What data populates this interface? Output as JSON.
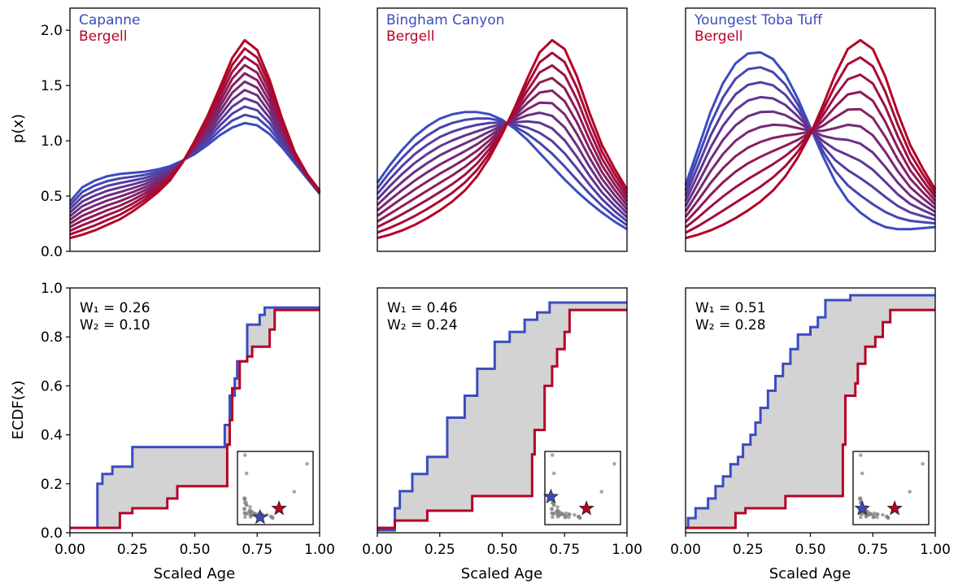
{
  "figure": {
    "colors": {
      "start": "#3b4cc0",
      "end": "#b40426",
      "fill": "#d3d3d3",
      "scatter": "#808080"
    },
    "labels": {
      "top_ylabel": "p(x)",
      "bottom_ylabel": "ECDF(x)",
      "xlabel": "Scaled Age"
    }
  },
  "chart_data": [
    {
      "type": "line",
      "row": "top",
      "col": 0,
      "legend": [
        "Capanne",
        "Bergell"
      ],
      "ylim": [
        0,
        2.2
      ],
      "xlim": [
        0,
        1
      ],
      "yticks": [
        "0.0",
        "0.5",
        "1.0",
        "1.5",
        "2.0"
      ],
      "x": [
        0,
        0.05,
        0.1,
        0.15,
        0.2,
        0.25,
        0.3,
        0.35,
        0.4,
        0.45,
        0.5,
        0.55,
        0.6,
        0.65,
        0.7,
        0.75,
        0.8,
        0.85,
        0.9,
        0.95,
        1.0
      ],
      "start_curve": [
        0.45,
        0.58,
        0.64,
        0.68,
        0.7,
        0.71,
        0.72,
        0.74,
        0.77,
        0.82,
        0.88,
        0.96,
        1.05,
        1.12,
        1.16,
        1.14,
        1.06,
        0.94,
        0.8,
        0.66,
        0.52
      ],
      "end_curve": [
        0.12,
        0.15,
        0.19,
        0.24,
        0.29,
        0.36,
        0.44,
        0.53,
        0.64,
        0.8,
        1.0,
        1.22,
        1.48,
        1.75,
        1.91,
        1.82,
        1.55,
        1.2,
        0.9,
        0.7,
        0.55
      ],
      "steps": 11
    },
    {
      "type": "line",
      "row": "top",
      "col": 1,
      "legend": [
        "Bingham Canyon",
        "Bergell"
      ],
      "ylim": [
        0,
        2.2
      ],
      "xlim": [
        0,
        1
      ],
      "yticks": [
        "0.0",
        "0.5",
        "1.0",
        "1.5",
        "2.0"
      ],
      "x": [
        0,
        0.05,
        0.1,
        0.15,
        0.2,
        0.25,
        0.3,
        0.35,
        0.4,
        0.45,
        0.5,
        0.55,
        0.6,
        0.65,
        0.7,
        0.75,
        0.8,
        0.85,
        0.9,
        0.95,
        1.0
      ],
      "start_curve": [
        0.62,
        0.78,
        0.92,
        1.04,
        1.13,
        1.2,
        1.24,
        1.26,
        1.26,
        1.24,
        1.19,
        1.11,
        1.01,
        0.89,
        0.77,
        0.65,
        0.54,
        0.44,
        0.35,
        0.27,
        0.2
      ],
      "end_curve": [
        0.12,
        0.15,
        0.19,
        0.24,
        0.3,
        0.37,
        0.45,
        0.55,
        0.68,
        0.85,
        1.06,
        1.3,
        1.56,
        1.8,
        1.91,
        1.83,
        1.58,
        1.25,
        0.96,
        0.75,
        0.56
      ],
      "steps": 11
    },
    {
      "type": "line",
      "row": "top",
      "col": 2,
      "legend": [
        "Youngest Toba Tuff",
        "Bergell"
      ],
      "ylim": [
        0,
        2.2
      ],
      "xlim": [
        0,
        1
      ],
      "yticks": [
        "0.0",
        "0.5",
        "1.0",
        "1.5",
        "2.0"
      ],
      "x": [
        0,
        0.05,
        0.1,
        0.15,
        0.2,
        0.25,
        0.3,
        0.35,
        0.4,
        0.45,
        0.5,
        0.55,
        0.6,
        0.65,
        0.7,
        0.75,
        0.8,
        0.85,
        0.9,
        0.95,
        1.0
      ],
      "start_curve": [
        0.6,
        0.93,
        1.26,
        1.52,
        1.7,
        1.79,
        1.8,
        1.74,
        1.6,
        1.38,
        1.12,
        0.86,
        0.63,
        0.46,
        0.35,
        0.27,
        0.22,
        0.2,
        0.2,
        0.21,
        0.22
      ],
      "end_curve": [
        0.12,
        0.15,
        0.19,
        0.24,
        0.3,
        0.37,
        0.45,
        0.55,
        0.68,
        0.85,
        1.06,
        1.32,
        1.6,
        1.83,
        1.91,
        1.83,
        1.58,
        1.25,
        0.96,
        0.75,
        0.56
      ],
      "steps": 11
    },
    {
      "type": "area",
      "row": "bottom",
      "col": 0,
      "annotation": [
        "W₁ = 0.26",
        "W₂ = 0.10"
      ],
      "ylim": [
        0,
        1
      ],
      "xlim": [
        0,
        1
      ],
      "yticks": [
        "0.0",
        "0.2",
        "0.4",
        "0.6",
        "0.8",
        "1.0"
      ],
      "xticks": [
        "0.00",
        "0.25",
        "0.50",
        "0.75",
        "1.00"
      ],
      "blue_steps": [
        [
          0,
          0.02
        ],
        [
          0.11,
          0.02
        ],
        [
          0.11,
          0.2
        ],
        [
          0.13,
          0.2
        ],
        [
          0.13,
          0.24
        ],
        [
          0.17,
          0.24
        ],
        [
          0.17,
          0.27
        ],
        [
          0.25,
          0.27
        ],
        [
          0.25,
          0.35
        ],
        [
          0.62,
          0.35
        ],
        [
          0.62,
          0.44
        ],
        [
          0.64,
          0.44
        ],
        [
          0.64,
          0.56
        ],
        [
          0.66,
          0.56
        ],
        [
          0.66,
          0.63
        ],
        [
          0.67,
          0.63
        ],
        [
          0.67,
          0.7
        ],
        [
          0.71,
          0.7
        ],
        [
          0.71,
          0.85
        ],
        [
          0.76,
          0.85
        ],
        [
          0.76,
          0.89
        ],
        [
          0.78,
          0.89
        ],
        [
          0.78,
          0.92
        ],
        [
          1.0,
          0.92
        ]
      ],
      "red_steps": [
        [
          0,
          0.02
        ],
        [
          0.2,
          0.02
        ],
        [
          0.2,
          0.08
        ],
        [
          0.25,
          0.08
        ],
        [
          0.25,
          0.1
        ],
        [
          0.39,
          0.1
        ],
        [
          0.39,
          0.14
        ],
        [
          0.43,
          0.14
        ],
        [
          0.43,
          0.19
        ],
        [
          0.63,
          0.19
        ],
        [
          0.63,
          0.36
        ],
        [
          0.64,
          0.36
        ],
        [
          0.64,
          0.46
        ],
        [
          0.65,
          0.46
        ],
        [
          0.65,
          0.59
        ],
        [
          0.68,
          0.59
        ],
        [
          0.68,
          0.7
        ],
        [
          0.71,
          0.7
        ],
        [
          0.71,
          0.72
        ],
        [
          0.73,
          0.72
        ],
        [
          0.73,
          0.76
        ],
        [
          0.8,
          0.76
        ],
        [
          0.8,
          0.83
        ],
        [
          0.82,
          0.83
        ],
        [
          0.82,
          0.91
        ],
        [
          1.0,
          0.91
        ]
      ],
      "inset_star_blue": [
        0.3,
        0.1
      ],
      "inset_star_red": [
        0.55,
        0.22
      ]
    },
    {
      "type": "area",
      "row": "bottom",
      "col": 1,
      "annotation": [
        "W₁ = 0.46",
        "W₂ = 0.24"
      ],
      "ylim": [
        0,
        1
      ],
      "xlim": [
        0,
        1
      ],
      "yticks": [
        "0.0",
        "0.2",
        "0.4",
        "0.6",
        "0.8",
        "1.0"
      ],
      "xticks": [
        "0.00",
        "0.25",
        "0.50",
        "0.75",
        "1.00"
      ],
      "blue_steps": [
        [
          0,
          0.01
        ],
        [
          0.07,
          0.01
        ],
        [
          0.07,
          0.1
        ],
        [
          0.09,
          0.1
        ],
        [
          0.09,
          0.17
        ],
        [
          0.14,
          0.17
        ],
        [
          0.14,
          0.24
        ],
        [
          0.2,
          0.24
        ],
        [
          0.2,
          0.31
        ],
        [
          0.28,
          0.31
        ],
        [
          0.28,
          0.47
        ],
        [
          0.35,
          0.47
        ],
        [
          0.35,
          0.56
        ],
        [
          0.4,
          0.56
        ],
        [
          0.4,
          0.67
        ],
        [
          0.47,
          0.67
        ],
        [
          0.47,
          0.78
        ],
        [
          0.53,
          0.78
        ],
        [
          0.53,
          0.82
        ],
        [
          0.59,
          0.82
        ],
        [
          0.59,
          0.87
        ],
        [
          0.64,
          0.87
        ],
        [
          0.64,
          0.9
        ],
        [
          0.69,
          0.9
        ],
        [
          0.69,
          0.94
        ],
        [
          1.0,
          0.94
        ]
      ],
      "red_steps": [
        [
          0,
          0.02
        ],
        [
          0.07,
          0.02
        ],
        [
          0.07,
          0.05
        ],
        [
          0.2,
          0.05
        ],
        [
          0.2,
          0.09
        ],
        [
          0.38,
          0.09
        ],
        [
          0.38,
          0.15
        ],
        [
          0.62,
          0.15
        ],
        [
          0.62,
          0.32
        ],
        [
          0.63,
          0.32
        ],
        [
          0.63,
          0.42
        ],
        [
          0.67,
          0.42
        ],
        [
          0.67,
          0.6
        ],
        [
          0.7,
          0.6
        ],
        [
          0.7,
          0.68
        ],
        [
          0.72,
          0.68
        ],
        [
          0.72,
          0.75
        ],
        [
          0.75,
          0.75
        ],
        [
          0.75,
          0.82
        ],
        [
          0.77,
          0.82
        ],
        [
          0.77,
          0.91
        ],
        [
          1.0,
          0.91
        ]
      ],
      "inset_star_blue": [
        0.08,
        0.38
      ],
      "inset_star_red": [
        0.55,
        0.22
      ]
    },
    {
      "type": "area",
      "row": "bottom",
      "col": 2,
      "annotation": [
        "W₁ = 0.51",
        "W₂ = 0.28"
      ],
      "ylim": [
        0,
        1
      ],
      "xlim": [
        0,
        1
      ],
      "yticks": [
        "0.0",
        "0.2",
        "0.4",
        "0.6",
        "0.8",
        "1.0"
      ],
      "xticks": [
        "0.00",
        "0.25",
        "0.50",
        "0.75",
        "1.00"
      ],
      "blue_steps": [
        [
          0,
          0.02
        ],
        [
          0.01,
          0.02
        ],
        [
          0.01,
          0.06
        ],
        [
          0.04,
          0.06
        ],
        [
          0.04,
          0.1
        ],
        [
          0.09,
          0.1
        ],
        [
          0.09,
          0.14
        ],
        [
          0.12,
          0.14
        ],
        [
          0.12,
          0.19
        ],
        [
          0.15,
          0.19
        ],
        [
          0.15,
          0.23
        ],
        [
          0.18,
          0.23
        ],
        [
          0.18,
          0.28
        ],
        [
          0.21,
          0.28
        ],
        [
          0.21,
          0.31
        ],
        [
          0.23,
          0.31
        ],
        [
          0.23,
          0.36
        ],
        [
          0.26,
          0.36
        ],
        [
          0.26,
          0.4
        ],
        [
          0.28,
          0.4
        ],
        [
          0.28,
          0.45
        ],
        [
          0.3,
          0.45
        ],
        [
          0.3,
          0.51
        ],
        [
          0.33,
          0.51
        ],
        [
          0.33,
          0.58
        ],
        [
          0.36,
          0.58
        ],
        [
          0.36,
          0.64
        ],
        [
          0.39,
          0.64
        ],
        [
          0.39,
          0.69
        ],
        [
          0.42,
          0.69
        ],
        [
          0.42,
          0.75
        ],
        [
          0.45,
          0.75
        ],
        [
          0.45,
          0.81
        ],
        [
          0.5,
          0.81
        ],
        [
          0.5,
          0.84
        ],
        [
          0.53,
          0.84
        ],
        [
          0.53,
          0.88
        ],
        [
          0.56,
          0.88
        ],
        [
          0.56,
          0.95
        ],
        [
          0.66,
          0.95
        ],
        [
          0.66,
          0.97
        ],
        [
          1.0,
          0.97
        ]
      ],
      "red_steps": [
        [
          0,
          0.02
        ],
        [
          0.2,
          0.02
        ],
        [
          0.2,
          0.08
        ],
        [
          0.24,
          0.08
        ],
        [
          0.24,
          0.1
        ],
        [
          0.4,
          0.1
        ],
        [
          0.4,
          0.15
        ],
        [
          0.63,
          0.15
        ],
        [
          0.63,
          0.36
        ],
        [
          0.64,
          0.36
        ],
        [
          0.64,
          0.56
        ],
        [
          0.68,
          0.56
        ],
        [
          0.68,
          0.61
        ],
        [
          0.69,
          0.61
        ],
        [
          0.69,
          0.69
        ],
        [
          0.72,
          0.69
        ],
        [
          0.72,
          0.76
        ],
        [
          0.76,
          0.76
        ],
        [
          0.76,
          0.8
        ],
        [
          0.79,
          0.8
        ],
        [
          0.79,
          0.86
        ],
        [
          0.82,
          0.86
        ],
        [
          0.82,
          0.91
        ],
        [
          1.0,
          0.91
        ]
      ],
      "inset_star_blue": [
        0.12,
        0.22
      ],
      "inset_star_red": [
        0.55,
        0.22
      ]
    }
  ]
}
